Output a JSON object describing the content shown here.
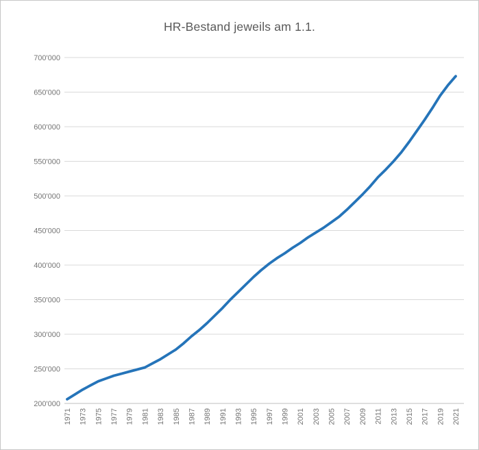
{
  "title": "HR-Bestand jeweils am 1.1.",
  "chart_data": {
    "type": "line",
    "title": "HR-Bestand jeweils am 1.1.",
    "series_name": "HR-Bestand",
    "x": [
      1971,
      1972,
      1973,
      1974,
      1975,
      1976,
      1977,
      1978,
      1979,
      1980,
      1981,
      1982,
      1983,
      1984,
      1985,
      1986,
      1987,
      1988,
      1989,
      1990,
      1991,
      1992,
      1993,
      1994,
      1995,
      1996,
      1997,
      1998,
      1999,
      2000,
      2001,
      2002,
      2003,
      2004,
      2005,
      2006,
      2007,
      2008,
      2009,
      2010,
      2011,
      2012,
      2013,
      2014,
      2015,
      2016,
      2017,
      2018,
      2019,
      2020,
      2021
    ],
    "values": [
      206000,
      213000,
      220000,
      226000,
      232000,
      236000,
      240000,
      243000,
      246000,
      249000,
      252000,
      258000,
      264000,
      271000,
      278000,
      287000,
      297000,
      306000,
      316000,
      327000,
      338000,
      350000,
      361000,
      372000,
      383000,
      393000,
      402000,
      410000,
      417000,
      425000,
      432000,
      440000,
      447000,
      454000,
      462000,
      470000,
      480000,
      491000,
      502000,
      514000,
      527000,
      538000,
      550000,
      563000,
      578000,
      594000,
      610000,
      627000,
      645000,
      660000,
      673000
    ],
    "xlabel": "",
    "ylabel": "",
    "ylim": [
      200000,
      700000
    ],
    "y_tick_step": 50000,
    "y_ticks": [
      {
        "value": 200000,
        "label": "200'000"
      },
      {
        "value": 250000,
        "label": "250'000"
      },
      {
        "value": 300000,
        "label": "300'000"
      },
      {
        "value": 350000,
        "label": "350'000"
      },
      {
        "value": 400000,
        "label": "400'000"
      },
      {
        "value": 450000,
        "label": "450'000"
      },
      {
        "value": 500000,
        "label": "500'000"
      },
      {
        "value": 550000,
        "label": "550'000"
      },
      {
        "value": 600000,
        "label": "600'000"
      },
      {
        "value": 650000,
        "label": "650'000"
      },
      {
        "value": 700000,
        "label": "700'000"
      }
    ],
    "x_tick_labels": [
      "1971",
      "1973",
      "1975",
      "1977",
      "1979",
      "1981",
      "1983",
      "1985",
      "1987",
      "1989",
      "1991",
      "1993",
      "1995",
      "1997",
      "1999",
      "2001",
      "2003",
      "2005",
      "2007",
      "2009",
      "2011",
      "2013",
      "2015",
      "2017",
      "2019",
      "2021"
    ],
    "grid": "horizontal",
    "legend": "none"
  },
  "colors": {
    "line": "#2574b9",
    "grid": "#d9d9d9",
    "axis": "#bfbfbf",
    "tick_text": "#757575",
    "title_text": "#595959",
    "border": "#c6c6c6",
    "background": "#ffffff"
  }
}
